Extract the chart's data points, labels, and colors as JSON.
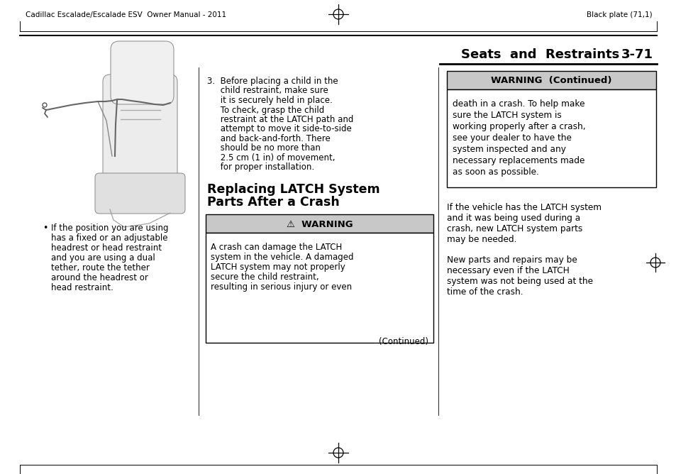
{
  "page_header_left": "Cadillac Escalade/Escalade ESV  Owner Manual - 2011",
  "page_header_right": "Black plate (71,1)",
  "section_title": "Seats  and  Restraints",
  "page_number": "3-71",
  "warning_header": "⚠  WARNING",
  "warning_body_lines": [
    "A crash can damage the LATCH",
    "system in the vehicle. A damaged",
    "LATCH system may not properly",
    "secure the child restraint,",
    "resulting in serious injury or even"
  ],
  "warning_continued": "(Continued)",
  "warning_cont_header": "WARNING  (Continued)",
  "warning_cont_body_lines": [
    "death in a crash. To help make",
    "sure the LATCH system is",
    "working properly after a crash,",
    "see your dealer to have the",
    "system inspected and any",
    "necessary replacements made",
    "as soon as possible."
  ],
  "item3_lines": [
    "3.  Before placing a child in the",
    "     child restraint, make sure",
    "     it is securely held in place.",
    "     To check, grasp the child",
    "     restraint at the LATCH path and",
    "     attempt to move it side-to-side",
    "     and back-and-forth. There",
    "     should be no more than",
    "     2.5 cm (1 in) of movement,",
    "     for proper installation."
  ],
  "section_heading_line1": "Replacing LATCH System",
  "section_heading_line2": "Parts After a Crash",
  "bullet_text_lines": [
    "If the position you are using",
    "has a fixed or an adjustable",
    "headrest or head restraint",
    "and you are using a dual",
    "tether, route the tether",
    "around the headrest or",
    "head restraint."
  ],
  "right_para1_lines": [
    "If the vehicle has the LATCH system",
    "and it was being used during a",
    "crash, new LATCH system parts",
    "may be needed."
  ],
  "right_para2_lines": [
    "New parts and repairs may be",
    "necessary even if the LATCH",
    "system was not being used at the",
    "time of the crash."
  ],
  "bg_color": "#ffffff",
  "warn_hdr_bg": "#c8c8c8",
  "text_color": "#000000"
}
